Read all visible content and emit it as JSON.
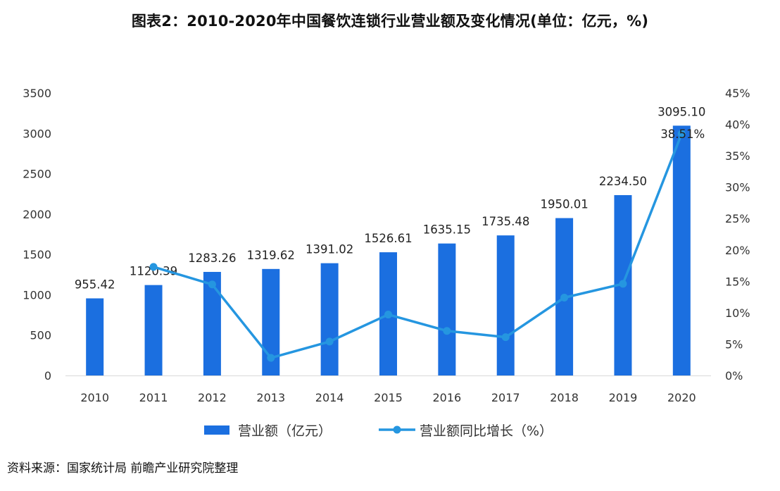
{
  "title": "图表2：2010-2020年中国餐饮连锁行业营业额及变化情况(单位：亿元，%)",
  "source": "资料来源：国家统计局 前瞻产业研究院整理",
  "colors": {
    "bar": "#1b6fe0",
    "line": "#2596e0"
  },
  "chart_data": {
    "type": "bar",
    "categories": [
      "2010",
      "2011",
      "2012",
      "2013",
      "2014",
      "2015",
      "2016",
      "2017",
      "2018",
      "2019",
      "2020"
    ],
    "series": [
      {
        "name": "营业额（亿元）",
        "type": "bar",
        "axis": "left",
        "values": [
          955.42,
          1120.39,
          1283.26,
          1319.62,
          1391.02,
          1526.61,
          1635.15,
          1735.48,
          1950.01,
          2234.5,
          3095.1
        ],
        "labels": [
          "955.42",
          "1120.39",
          "1283.26",
          "1319.62",
          "1391.02",
          "1526.61",
          "1635.15",
          "1735.48",
          "1950.01",
          "2234.50",
          "3095.10"
        ]
      },
      {
        "name": "营业额同比增长（%）",
        "type": "line",
        "axis": "right",
        "values": [
          null,
          17.3,
          14.5,
          2.8,
          5.4,
          9.7,
          7.1,
          6.1,
          12.4,
          14.6,
          38.51
        ],
        "labels": [
          null,
          null,
          null,
          null,
          null,
          null,
          null,
          null,
          null,
          null,
          "38.51%"
        ]
      }
    ],
    "y_left": {
      "min": 0,
      "max": 3500,
      "ticks": [
        "0",
        "500",
        "1000",
        "1500",
        "2000",
        "2500",
        "3000",
        "3500"
      ]
    },
    "y_right": {
      "min": 0,
      "max": 45,
      "ticks": [
        "0%",
        "5%",
        "10%",
        "15%",
        "20%",
        "25%",
        "30%",
        "35%",
        "40%",
        "45%"
      ]
    },
    "grid": false,
    "legend_position": "bottom"
  }
}
